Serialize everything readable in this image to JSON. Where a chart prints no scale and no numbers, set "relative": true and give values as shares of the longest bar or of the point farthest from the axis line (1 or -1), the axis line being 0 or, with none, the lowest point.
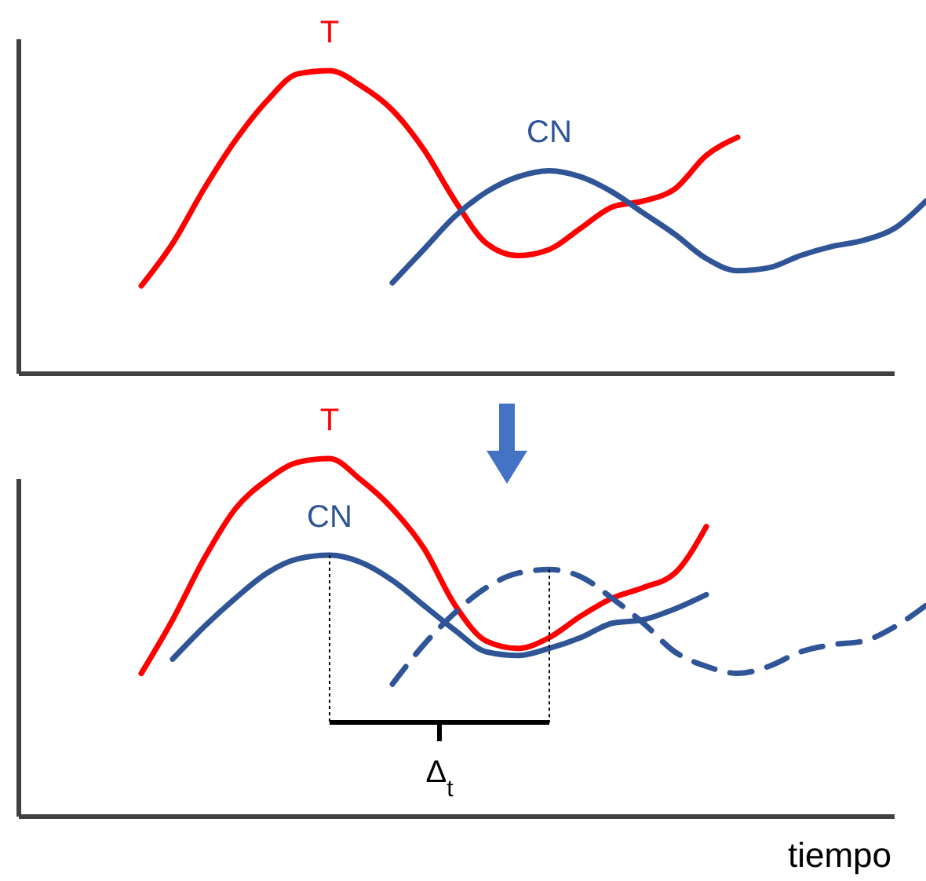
{
  "chart_data": [
    {
      "type": "line",
      "relative": true,
      "categories": [
        null,
        null,
        null,
        null,
        null,
        null,
        null,
        null,
        null,
        null,
        null,
        null,
        null,
        null,
        null,
        null,
        null,
        null,
        null,
        null,
        null,
        null,
        null,
        null,
        null,
        null,
        null,
        null,
        null
      ],
      "series": [
        {
          "name": "T",
          "color": "#ff0000",
          "values": [
            null,
            null,
            null,
            0.29,
            0.43,
            0.61,
            0.77,
            0.9,
            0.99,
            1.0,
            0.95,
            0.87,
            0.74,
            0.57,
            0.43,
            0.39,
            0.41,
            0.48,
            0.55,
            0.57,
            0.61,
            0.72,
            0.78,
            null,
            null,
            null,
            null,
            null,
            null
          ]
        },
        {
          "name": "CN",
          "color": "#2f5597",
          "values": [
            null,
            null,
            null,
            null,
            null,
            null,
            null,
            null,
            null,
            null,
            null,
            0.3,
            0.41,
            0.52,
            0.6,
            0.65,
            0.67,
            0.65,
            0.6,
            0.53,
            0.46,
            0.38,
            0.34,
            0.35,
            0.39,
            0.42,
            0.44,
            0.48,
            0.57
          ]
        }
      ]
    },
    {
      "type": "line",
      "relative": true,
      "xlabel": "tiempo",
      "categories": [
        null,
        null,
        null,
        null,
        null,
        null,
        null,
        null,
        null,
        null,
        null,
        null,
        null,
        null,
        null,
        null,
        null,
        null,
        null,
        null,
        null,
        null,
        null,
        null,
        null,
        null,
        null,
        null,
        null
      ],
      "series": [
        {
          "name": "T",
          "color": "#ff0000",
          "values": [
            null,
            null,
            null,
            0.4,
            0.55,
            0.72,
            0.86,
            0.94,
            0.99,
            1.0,
            0.94,
            0.86,
            0.75,
            0.59,
            0.49,
            0.47,
            0.5,
            0.56,
            0.61,
            0.64,
            0.68,
            0.81,
            null,
            null,
            null,
            null,
            null,
            null,
            null
          ]
        },
        {
          "name": "CN",
          "color": "#2f5597",
          "values": [
            null,
            null,
            null,
            null,
            0.44,
            0.53,
            0.61,
            0.68,
            0.72,
            0.73,
            0.71,
            0.66,
            0.59,
            0.52,
            0.46,
            0.45,
            0.47,
            0.5,
            0.54,
            0.55,
            0.58,
            0.62,
            null,
            null,
            null,
            null,
            null,
            null,
            null
          ]
        },
        {
          "color": "#2f5597",
          "line_style": "dashed",
          "values": [
            null,
            null,
            null,
            null,
            null,
            null,
            null,
            null,
            null,
            null,
            null,
            0.37,
            0.48,
            0.57,
            0.64,
            0.68,
            0.69,
            0.67,
            0.61,
            0.54,
            0.46,
            0.42,
            0.4,
            0.42,
            0.46,
            0.48,
            0.49,
            0.53,
            0.59
          ]
        }
      ],
      "annotations": [
        "Δ$_{t}$"
      ]
    }
  ]
}
